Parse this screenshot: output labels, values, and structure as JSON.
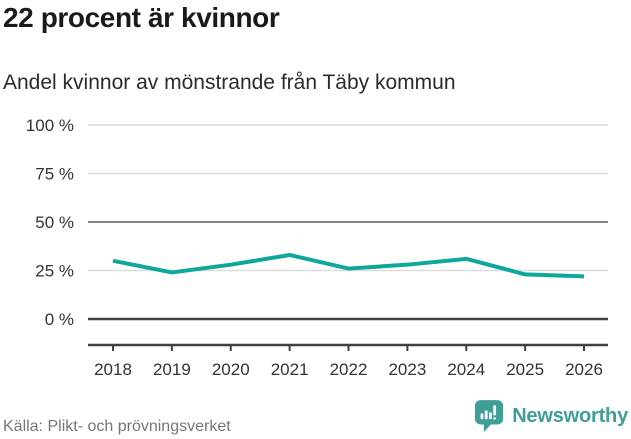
{
  "header": {
    "title": "22 procent är kvinnor",
    "subtitle": "Andel kvinnor av mönstrande från Täby kommun"
  },
  "footer": {
    "source": "Källa: Plikt- och prövningsverket",
    "brand": "Newsworthy"
  },
  "chart_data": {
    "type": "line",
    "title": "22 procent är kvinnor",
    "subtitle": "Andel kvinnor av mönstrande från Täby kommun",
    "categories": [
      "2018",
      "2019",
      "2020",
      "2021",
      "2022",
      "2023",
      "2024",
      "2025",
      "2026"
    ],
    "series": [
      {
        "name": "Andel kvinnor av mönstrande",
        "values": [
          30,
          24,
          28,
          33,
          26,
          28,
          31,
          23,
          22
        ]
      }
    ],
    "xlabel": "",
    "ylabel": "",
    "ylim": [
      0,
      100
    ],
    "yticks": [
      0,
      25,
      50,
      75,
      100
    ],
    "ytick_suffix": " %",
    "grid": true,
    "legend": false,
    "colors": {
      "line": "#10a79b",
      "grid": "#dcdcdc",
      "grid_mid": "#828287",
      "grid_zero": "#404040",
      "axis": "#404040",
      "tick_label": "#333333",
      "brand_teal": "#3f9e96"
    }
  }
}
